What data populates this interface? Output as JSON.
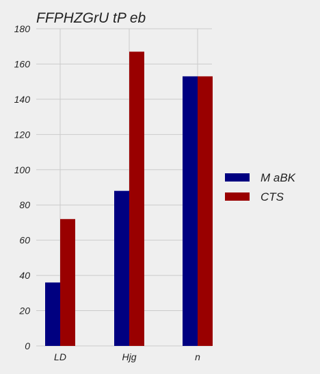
{
  "chart_data": {
    "type": "bar",
    "title": "FFPHZGrU tP eb",
    "xlabel": "",
    "ylabel": "",
    "categories": [
      "LD",
      "Hjg",
      "n"
    ],
    "series": [
      {
        "name": "M aBK",
        "values": [
          36,
          88,
          153
        ]
      },
      {
        "name": "CTS",
        "values": [
          72,
          167,
          153
        ]
      }
    ],
    "ylim": [
      0,
      180
    ],
    "yticks": [
      0,
      20,
      40,
      60,
      80,
      100,
      120,
      140,
      160,
      180
    ],
    "grid": true,
    "legend_position": "right"
  },
  "colors": {
    "series": [
      "#000080",
      "#990000"
    ],
    "background": "#efefef",
    "grid": "#cbcbcb"
  }
}
